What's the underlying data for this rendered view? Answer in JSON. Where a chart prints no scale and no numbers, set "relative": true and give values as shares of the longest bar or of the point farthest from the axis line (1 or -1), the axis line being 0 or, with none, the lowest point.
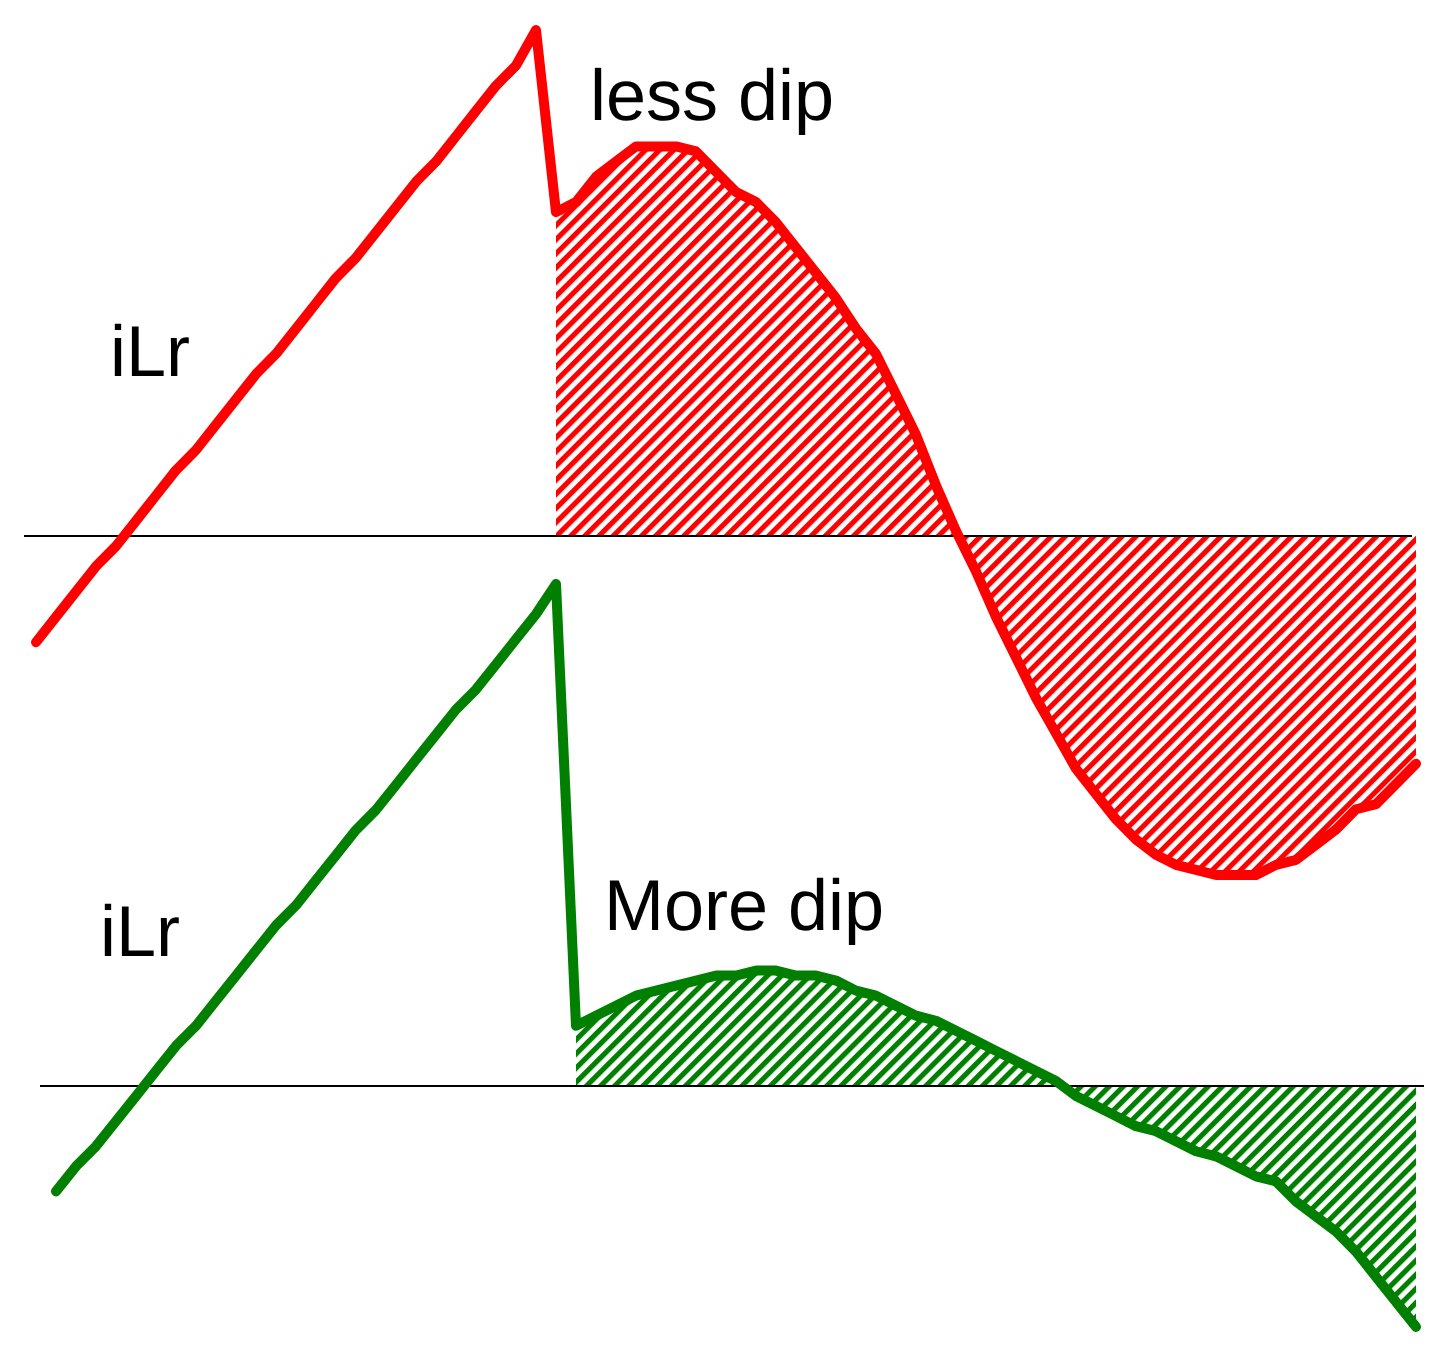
{
  "chart_data": [
    {
      "type": "line",
      "relative": true,
      "annotations": [
        "iLr",
        "less dip"
      ],
      "categories": [
        null,
        null,
        null,
        null,
        null,
        null,
        null,
        null,
        null,
        null,
        null,
        null,
        null,
        null,
        null,
        null,
        null,
        null,
        null,
        null,
        null,
        null,
        null,
        null,
        null,
        null,
        null,
        null,
        null,
        null,
        null,
        null,
        null,
        null,
        null,
        null,
        null,
        null,
        null,
        null,
        null,
        null,
        null,
        null,
        null,
        null,
        null,
        null,
        null,
        null,
        null,
        null,
        null,
        null,
        null,
        null,
        null,
        null,
        null,
        null,
        null,
        null,
        null,
        null,
        null,
        null,
        null,
        null,
        null,
        null
      ],
      "series": [
        {
          "type": "area",
          "color": "#ff0000",
          "values": [
            null,
            null,
            null,
            null,
            null,
            null,
            null,
            null,
            null,
            null,
            null,
            null,
            null,
            null,
            null,
            null,
            null,
            null,
            null,
            null,
            null,
            null,
            null,
            null,
            null,
            null,
            0.64,
            0.66,
            0.71,
            0.74,
            0.77,
            0.77,
            0.77,
            0.76,
            0.72,
            0.68,
            0.66,
            0.62,
            0.57,
            0.52,
            0.47,
            0.41,
            0.36,
            0.28,
            0.2,
            0.1,
            0.01,
            -0.07,
            -0.16,
            -0.24,
            -0.32,
            -0.39,
            -0.46,
            -0.51,
            -0.56,
            -0.6,
            -0.63,
            -0.65,
            -0.66,
            -0.67,
            -0.67,
            -0.67,
            -0.65,
            -0.64,
            -0.61,
            -0.58,
            -0.54,
            -0.53,
            -0.49,
            -0.45
          ]
        },
        {
          "color": "#ff0000",
          "values": [
            -0.21,
            -0.16,
            -0.11,
            -0.06,
            -0.02,
            0.03,
            0.08,
            0.13,
            0.17,
            0.22,
            0.27,
            0.32,
            0.36,
            0.41,
            0.46,
            0.51,
            0.55,
            0.6,
            0.65,
            0.7,
            0.74,
            0.79,
            0.84,
            0.89,
            0.93,
            1,
            0.64,
            0.66,
            0.71,
            0.74,
            0.77,
            0.77,
            0.77,
            0.76,
            0.72,
            0.68,
            0.66,
            0.62,
            0.57,
            0.52,
            0.47,
            0.41,
            0.36,
            0.28,
            0.2,
            0.1,
            0.01,
            -0.07,
            -0.16,
            -0.24,
            -0.32,
            -0.39,
            -0.46,
            -0.51,
            -0.56,
            -0.6,
            -0.63,
            -0.65,
            -0.66,
            -0.67,
            -0.67,
            -0.67,
            -0.65,
            -0.64,
            -0.61,
            -0.58,
            -0.54,
            -0.53,
            -0.49,
            -0.45
          ]
        }
      ]
    },
    {
      "type": "line",
      "relative": true,
      "annotations": [
        "iLr",
        "More dip"
      ],
      "categories": [
        null,
        null,
        null,
        null,
        null,
        null,
        null,
        null,
        null,
        null,
        null,
        null,
        null,
        null,
        null,
        null,
        null,
        null,
        null,
        null,
        null,
        null,
        null,
        null,
        null,
        null,
        null,
        null,
        null,
        null,
        null,
        null,
        null,
        null,
        null,
        null,
        null,
        null,
        null,
        null,
        null,
        null,
        null,
        null,
        null,
        null,
        null,
        null,
        null,
        null,
        null,
        null,
        null,
        null,
        null,
        null,
        null,
        null,
        null,
        null,
        null,
        null,
        null,
        null,
        null,
        null,
        null,
        null,
        null
      ],
      "series": [
        {
          "type": "area",
          "color": "#007f00",
          "values": [
            null,
            null,
            null,
            null,
            null,
            null,
            null,
            null,
            null,
            null,
            null,
            null,
            null,
            null,
            null,
            null,
            null,
            null,
            null,
            null,
            null,
            null,
            null,
            null,
            null,
            null,
            0.12,
            0.14,
            0.16,
            0.18,
            0.19,
            0.2,
            0.21,
            0.22,
            0.22,
            0.23,
            0.23,
            0.22,
            0.22,
            0.21,
            0.19,
            0.18,
            0.16,
            0.14,
            0.13,
            0.11,
            0.09,
            0.07,
            0.05,
            0.03,
            0.01,
            -0.02,
            -0.04,
            -0.06,
            -0.08,
            -0.09,
            -0.11,
            -0.13,
            -0.14,
            -0.16,
            -0.18,
            -0.19,
            -0.23,
            -0.26,
            -0.29,
            -0.33,
            -0.38,
            -0.43,
            -0.48
          ]
        },
        {
          "color": "#007f00",
          "values": [
            -0.21,
            -0.16,
            -0.12,
            -0.07,
            -0.02,
            0.03,
            0.08,
            0.12,
            0.17,
            0.22,
            0.27,
            0.32,
            0.36,
            0.41,
            0.46,
            0.51,
            0.55,
            0.6,
            0.65,
            0.7,
            0.75,
            0.79,
            0.84,
            0.89,
            0.94,
            1,
            0.12,
            0.14,
            0.16,
            0.18,
            0.19,
            0.2,
            0.21,
            0.22,
            0.22,
            0.23,
            0.23,
            0.22,
            0.22,
            0.21,
            0.19,
            0.18,
            0.16,
            0.14,
            0.13,
            0.11,
            0.09,
            0.07,
            0.05,
            0.03,
            0.01,
            -0.02,
            -0.04,
            -0.06,
            -0.08,
            -0.09,
            -0.11,
            -0.13,
            -0.14,
            -0.16,
            -0.18,
            -0.19,
            -0.23,
            -0.26,
            -0.29,
            -0.33,
            -0.38,
            -0.43,
            -0.48
          ]
        }
      ]
    }
  ]
}
